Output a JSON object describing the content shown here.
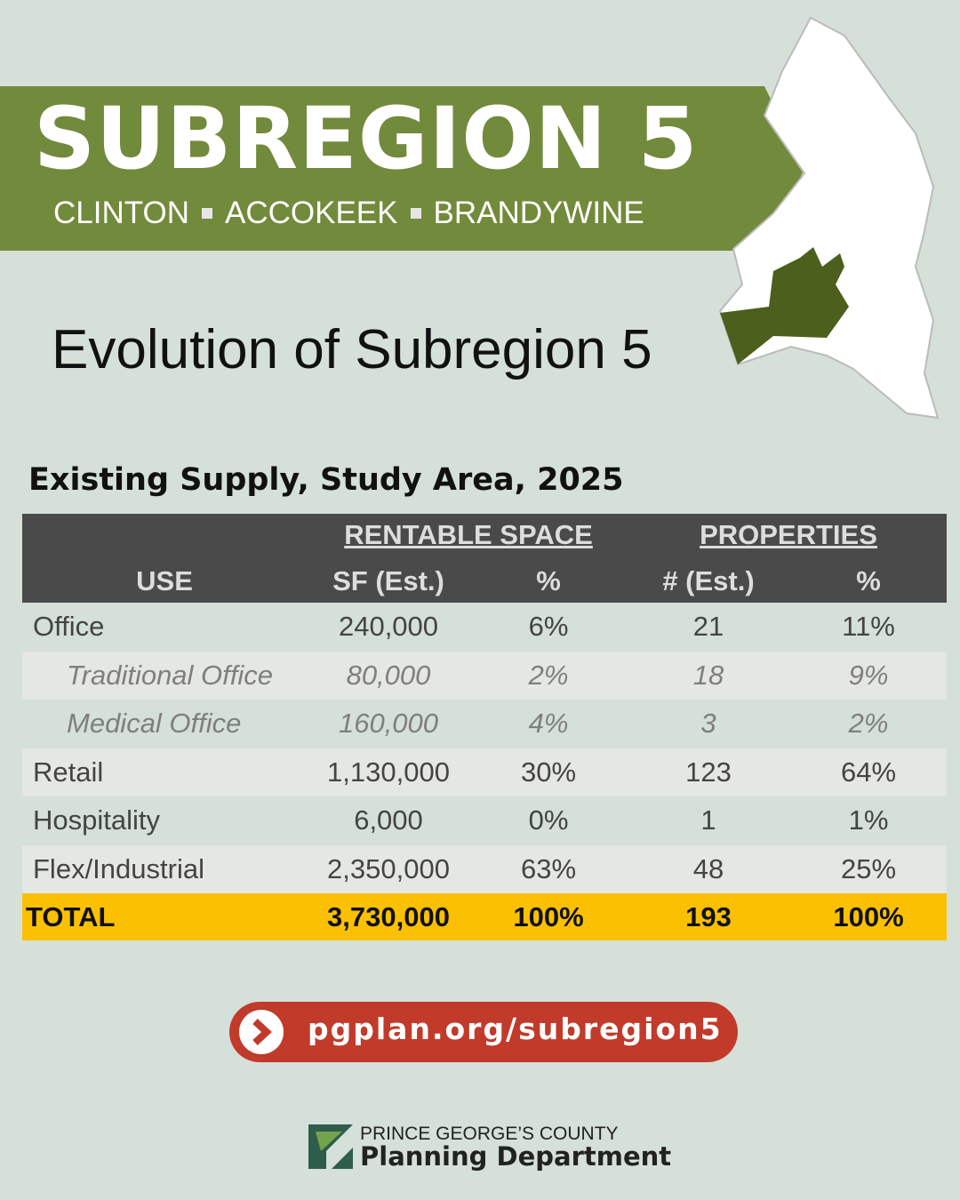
{
  "banner": {
    "title": "SUBREGION 5",
    "places": [
      "CLINTON",
      "ACCOKEEK",
      "BRANDYWINE"
    ]
  },
  "heading": "Evolution of Subregion 5",
  "table": {
    "caption": "Existing Supply, Study Area, 2025",
    "group_headers": [
      "RENTABLE SPACE",
      "PROPERTIES"
    ],
    "columns": [
      "USE",
      "SF (Est.)",
      "%",
      "# (Est.)",
      "%"
    ],
    "rows": [
      [
        "Office",
        "240,000",
        "6%",
        "21",
        "11%"
      ],
      [
        "Traditional Office",
        "80,000",
        "2%",
        "18",
        "9%"
      ],
      [
        "Medical Office",
        "160,000",
        "4%",
        "3",
        "2%"
      ],
      [
        "Retail",
        "1,130,000",
        "30%",
        "123",
        "64%"
      ],
      [
        "Hospitality",
        "6,000",
        "0%",
        "1",
        "1%"
      ],
      [
        "Flex/Industrial",
        "2,350,000",
        "63%",
        "48",
        "25%"
      ]
    ],
    "total": [
      "TOTAL",
      "3,730,000",
      "100%",
      "193",
      "100%"
    ]
  },
  "link": "pgplan.org/subregion5",
  "footer": {
    "line1": "PRINCE GEORGE’S COUNTY",
    "line2": "Planning Department"
  }
}
